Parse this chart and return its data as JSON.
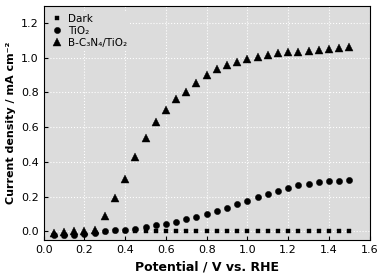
{
  "dark_x": [
    0.05,
    0.1,
    0.15,
    0.2,
    0.25,
    0.3,
    0.35,
    0.4,
    0.45,
    0.5,
    0.55,
    0.6,
    0.65,
    0.7,
    0.75,
    0.8,
    0.85,
    0.9,
    0.95,
    1.0,
    1.05,
    1.1,
    1.15,
    1.2,
    1.25,
    1.3,
    1.35,
    1.4,
    1.45,
    1.5
  ],
  "dark_y": [
    -0.02,
    -0.025,
    -0.02,
    -0.015,
    -0.01,
    -0.005,
    0.0,
    0.0,
    0.0,
    0.0,
    0.0,
    0.0,
    0.0,
    0.0,
    0.0,
    0.0,
    0.0,
    0.0,
    0.0,
    0.0,
    0.0,
    0.0,
    0.0,
    0.0,
    0.0,
    0.0,
    0.0,
    0.0,
    0.0,
    0.0
  ],
  "tio2_x": [
    0.05,
    0.1,
    0.15,
    0.2,
    0.25,
    0.3,
    0.35,
    0.4,
    0.45,
    0.5,
    0.55,
    0.6,
    0.65,
    0.7,
    0.75,
    0.8,
    0.85,
    0.9,
    0.95,
    1.0,
    1.05,
    1.1,
    1.15,
    1.2,
    1.25,
    1.3,
    1.35,
    1.4,
    1.45,
    1.5
  ],
  "tio2_y": [
    -0.02,
    -0.02,
    -0.02,
    -0.015,
    -0.01,
    0.0,
    0.005,
    0.01,
    0.015,
    0.025,
    0.035,
    0.045,
    0.055,
    0.07,
    0.085,
    0.1,
    0.115,
    0.135,
    0.155,
    0.175,
    0.195,
    0.215,
    0.235,
    0.25,
    0.265,
    0.275,
    0.282,
    0.288,
    0.292,
    0.295
  ],
  "bc3n4_x": [
    0.05,
    0.1,
    0.15,
    0.2,
    0.25,
    0.3,
    0.35,
    0.4,
    0.45,
    0.5,
    0.55,
    0.6,
    0.65,
    0.7,
    0.75,
    0.8,
    0.85,
    0.9,
    0.95,
    1.0,
    1.05,
    1.1,
    1.15,
    1.2,
    1.25,
    1.3,
    1.35,
    1.4,
    1.45,
    1.5
  ],
  "bc3n4_y": [
    -0.01,
    -0.005,
    0.0,
    0.0,
    0.01,
    0.09,
    0.19,
    0.3,
    0.43,
    0.54,
    0.63,
    0.7,
    0.76,
    0.8,
    0.855,
    0.9,
    0.935,
    0.96,
    0.975,
    0.99,
    1.005,
    1.015,
    1.025,
    1.03,
    1.035,
    1.04,
    1.045,
    1.05,
    1.055,
    1.06
  ],
  "xlabel": "Potential / V vs. RHE",
  "ylabel": "Current density / mA cm⁻²",
  "xlim": [
    0.0,
    1.6
  ],
  "ylim": [
    -0.05,
    1.3
  ],
  "yticks": [
    0.0,
    0.2,
    0.4,
    0.6,
    0.8,
    1.0,
    1.2
  ],
  "xticks": [
    0.0,
    0.2,
    0.4,
    0.6,
    0.8,
    1.0,
    1.2,
    1.4,
    1.6
  ],
  "legend_dark": "Dark",
  "legend_tio2": "TiO₂",
  "legend_bc3n4": "B-C₃N₄/TiO₂",
  "marker_color": "black",
  "plot_bg_color": "#dcdcdc",
  "fig_bg_color": "#ffffff"
}
